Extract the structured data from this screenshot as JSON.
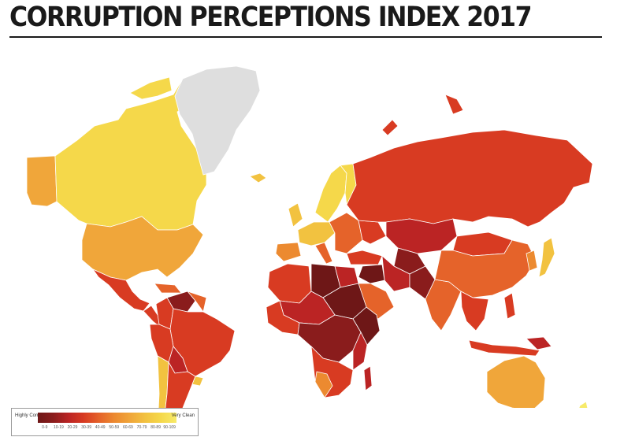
{
  "title": "CORRUPTION PERCEPTIONS INDEX 2017",
  "legend": {
    "low_label": "Highly Corrupt",
    "high_label": "Very Clean",
    "bins": [
      {
        "label": "0-9",
        "color": "#6e1717"
      },
      {
        "label": "10-19",
        "color": "#8a1c1c"
      },
      {
        "label": "20-29",
        "color": "#bb2424"
      },
      {
        "label": "30-39",
        "color": "#d83b22"
      },
      {
        "label": "40-49",
        "color": "#e5632a"
      },
      {
        "label": "50-59",
        "color": "#ec8a30"
      },
      {
        "label": "60-69",
        "color": "#f0a63a"
      },
      {
        "label": "70-79",
        "color": "#f2c240"
      },
      {
        "label": "80-89",
        "color": "#f5d84a"
      },
      {
        "label": "90-109",
        "color": "#f7ea6a"
      }
    ],
    "no_data_color": "#dedede"
  },
  "map": {
    "ocean_color": "#ffffff",
    "border_color": "#ffffff"
  }
}
